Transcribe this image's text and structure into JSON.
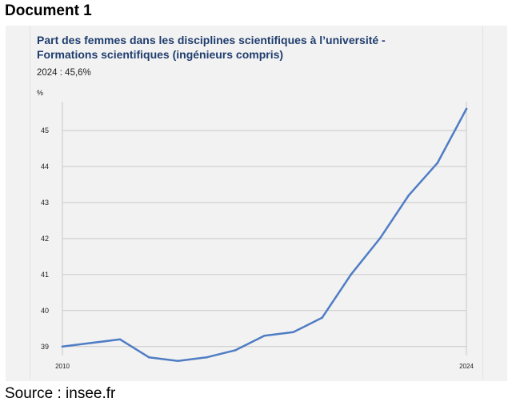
{
  "heading": "Document 1",
  "source": "Source : insee.fr",
  "chart_data": {
    "type": "line",
    "title": "Part des femmes dans les disciplines scientifiques à l’université - Formations scientifiques (ingénieurs compris)",
    "subtitle": "2024 : 45,6%",
    "ylabel": "%",
    "xlabel": "",
    "ylim": [
      38.75,
      45.8
    ],
    "yticks": [
      39,
      40,
      41,
      42,
      43,
      44,
      45
    ],
    "xlim": [
      2010,
      2024
    ],
    "xticks": [
      2010,
      2024
    ],
    "grid": true,
    "line_color": "#4f7dc4",
    "series": [
      {
        "x": [
          2010,
          2011,
          2012,
          2013,
          2014,
          2015,
          2016,
          2017,
          2018,
          2019,
          2020,
          2021,
          2022,
          2023,
          2024
        ],
        "y": [
          39.0,
          39.1,
          39.2,
          38.7,
          38.6,
          38.7,
          38.9,
          39.3,
          39.4,
          39.8,
          41.0,
          42.0,
          43.2,
          44.1,
          45.6
        ]
      }
    ]
  }
}
